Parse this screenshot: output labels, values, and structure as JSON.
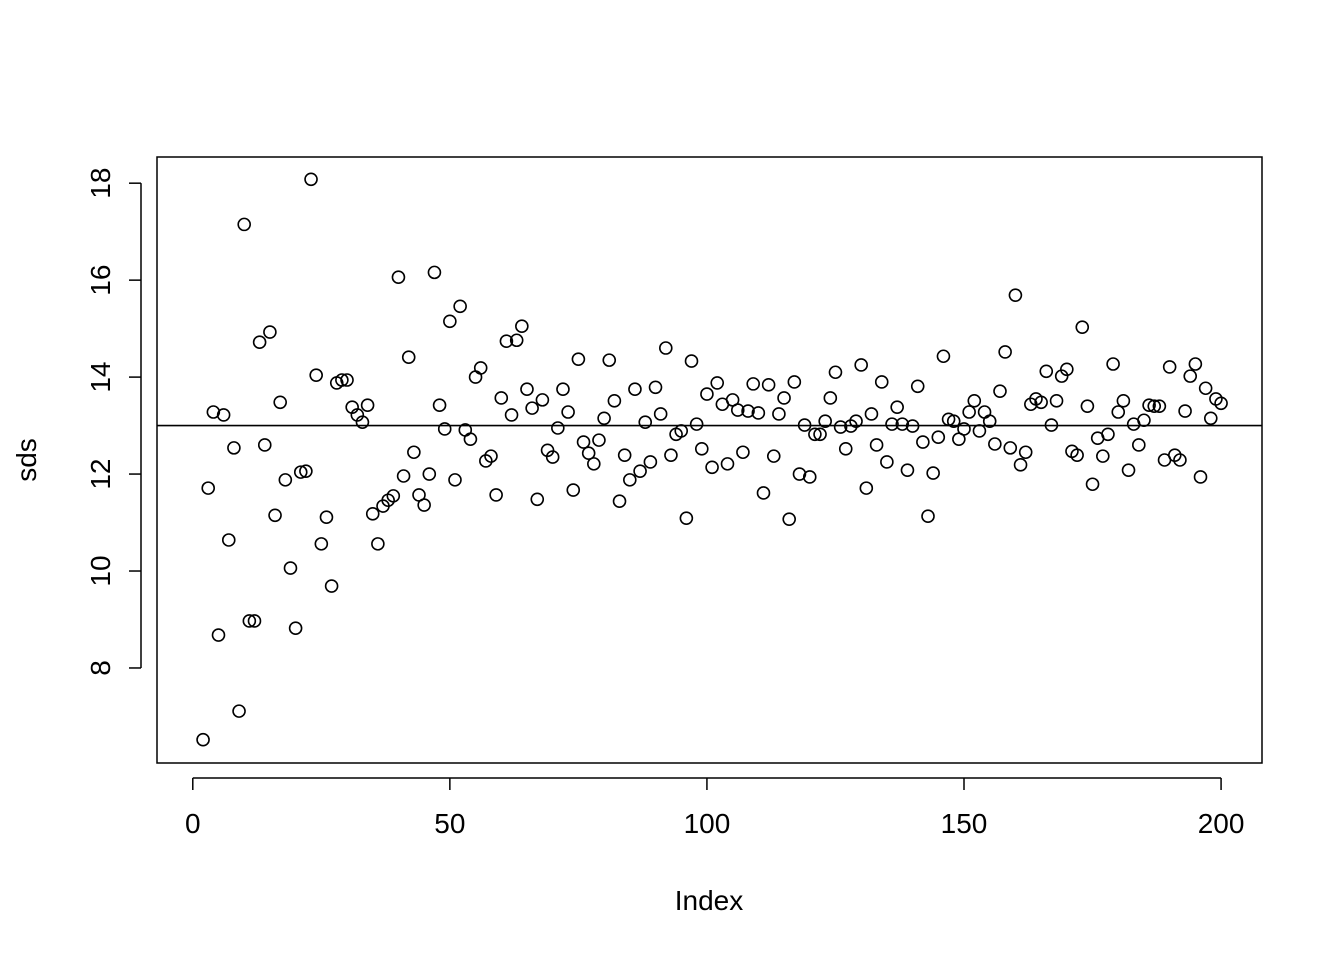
{
  "chart_data": {
    "type": "scatter",
    "xlabel": "Index",
    "ylabel": "sds",
    "x": [
      2,
      3,
      4,
      5,
      6,
      7,
      8,
      9,
      10,
      11,
      12,
      13,
      14,
      15,
      16,
      17,
      18,
      19,
      20,
      21,
      22,
      23,
      24,
      25,
      26,
      27,
      28,
      29,
      30,
      31,
      32,
      33,
      34,
      35,
      36,
      37,
      38,
      39,
      40,
      41,
      42,
      43,
      44,
      45,
      46,
      47,
      48,
      49,
      50,
      51,
      52,
      53,
      54,
      55,
      56,
      57,
      58,
      59,
      60,
      61,
      62,
      63,
      64,
      65,
      66,
      67,
      68,
      69,
      70,
      71,
      72,
      73,
      74,
      75,
      76,
      77,
      78,
      79,
      80,
      81,
      82,
      83,
      84,
      85,
      86,
      87,
      88,
      89,
      90,
      91,
      92,
      93,
      94,
      95,
      96,
      97,
      98,
      99,
      100,
      101,
      102,
      103,
      104,
      105,
      106,
      107,
      108,
      109,
      110,
      111,
      112,
      113,
      114,
      115,
      116,
      117,
      118,
      119,
      120,
      121,
      122,
      123,
      124,
      125,
      126,
      127,
      128,
      129,
      130,
      131,
      132,
      133,
      134,
      135,
      136,
      137,
      138,
      139,
      140,
      141,
      142,
      143,
      144,
      145,
      146,
      147,
      148,
      149,
      150,
      151,
      152,
      153,
      154,
      155,
      156,
      157,
      158,
      159,
      160,
      161,
      162,
      163,
      164,
      165,
      166,
      167,
      168,
      169,
      170,
      171,
      172,
      173,
      174,
      175,
      176,
      177,
      178,
      179,
      180,
      181,
      182,
      183,
      184,
      185,
      186,
      187,
      188,
      189,
      190,
      191,
      192,
      193,
      194,
      195,
      196,
      197,
      198,
      199,
      200
    ],
    "values": [
      6.52,
      11.71,
      13.28,
      8.68,
      13.22,
      10.64,
      12.54,
      7.11,
      17.15,
      8.97,
      8.97,
      14.72,
      12.6,
      14.93,
      11.15,
      13.48,
      11.88,
      10.06,
      8.82,
      12.04,
      12.06,
      18.08,
      14.04,
      10.56,
      11.11,
      9.69,
      13.88,
      13.94,
      13.94,
      13.38,
      13.22,
      13.07,
      13.42,
      11.18,
      10.56,
      11.34,
      11.46,
      11.55,
      16.06,
      11.96,
      14.41,
      12.45,
      11.57,
      11.36,
      12.0,
      16.16,
      13.42,
      12.93,
      15.15,
      11.88,
      15.46,
      12.91,
      12.72,
      14.0,
      14.19,
      12.27,
      12.37,
      11.57,
      13.57,
      14.74,
      13.22,
      14.76,
      15.05,
      13.75,
      13.36,
      11.48,
      13.53,
      12.49,
      12.35,
      12.95,
      13.75,
      13.28,
      11.67,
      14.37,
      12.66,
      12.43,
      12.21,
      12.7,
      13.15,
      14.35,
      13.51,
      11.44,
      12.39,
      11.88,
      13.75,
      12.06,
      13.07,
      12.25,
      13.79,
      13.24,
      14.6,
      12.39,
      12.82,
      12.89,
      11.09,
      14.33,
      13.03,
      12.52,
      13.65,
      12.14,
      13.88,
      13.44,
      12.21,
      13.53,
      13.32,
      12.45,
      13.3,
      13.86,
      13.26,
      11.61,
      13.84,
      12.37,
      13.24,
      13.57,
      11.07,
      13.9,
      12.0,
      13.01,
      11.94,
      12.82,
      12.82,
      13.09,
      13.57,
      14.1,
      12.97,
      12.52,
      12.99,
      13.09,
      14.25,
      11.71,
      13.24,
      12.6,
      13.9,
      12.25,
      13.03,
      13.38,
      13.03,
      12.08,
      12.99,
      13.81,
      12.66,
      11.13,
      12.02,
      12.76,
      14.43,
      13.13,
      13.09,
      12.72,
      12.93,
      13.28,
      13.51,
      12.89,
      13.28,
      13.09,
      12.62,
      13.71,
      14.52,
      12.54,
      15.69,
      12.19,
      12.45,
      13.44,
      13.55,
      13.48,
      14.12,
      13.01,
      13.51,
      14.02,
      14.16,
      12.47,
      12.39,
      15.03,
      13.4,
      11.79,
      12.74,
      12.37,
      12.82,
      14.27,
      13.28,
      13.51,
      12.08,
      13.03,
      12.6,
      13.11,
      13.42,
      13.4,
      13.4,
      12.29,
      14.21,
      12.39,
      12.29,
      13.3,
      14.02,
      14.27,
      11.94,
      13.77,
      13.15,
      13.55,
      13.46
    ],
    "hline": 13,
    "color": "#000000",
    "xlim": [
      -6.96,
      207.96
    ],
    "ylim": [
      6.04,
      18.54
    ],
    "xticks": [
      0,
      50,
      100,
      150,
      200
    ],
    "yticks": [
      8,
      10,
      12,
      14,
      16,
      18
    ]
  }
}
